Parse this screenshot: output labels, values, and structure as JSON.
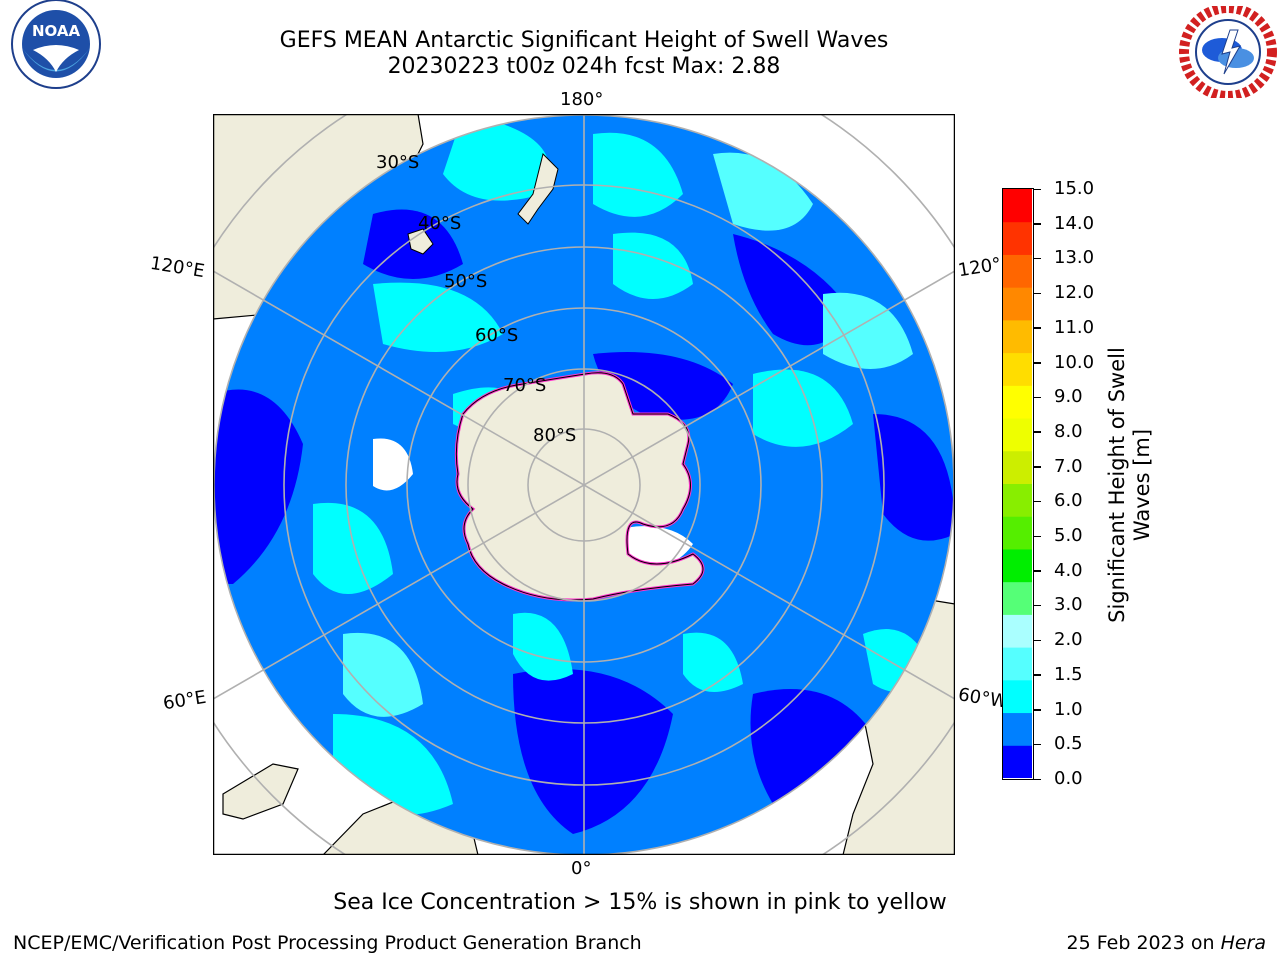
{
  "header": {
    "title_line1": "GEFS MEAN Antarctic Significant Height of Swell Waves",
    "title_line2": "20230223 t00z 024h fcst   Max: 2.88"
  },
  "logos": {
    "noaa": {
      "text": "NOAA",
      "ring_text": "NATIONAL OCEANIC AND ATMOSPHERIC ADMINISTRATION · U.S. DEPARTMENT OF COMMERCE"
    },
    "nws": {
      "ring_text": "NATIONAL WEATHER SERVICE"
    }
  },
  "map": {
    "longitude_labels": {
      "top": "180°",
      "bottom": "0°",
      "left_upper": "120°E",
      "left_lower": "60°E",
      "right_upper": "120°",
      "right_lower": "60°W"
    },
    "latitude_labels": [
      "30°S",
      "40°S",
      "50°S",
      "60°S",
      "70°S",
      "80°S"
    ],
    "colors": {
      "land": "#efeddc",
      "ocean_low": "#0000ff",
      "ocean_mid": "#0080ff",
      "ocean_high": "#00ffff",
      "ocean_highest": "#55ffff",
      "ice_edge": "#ff33cc",
      "grid": "#b0b0b0"
    }
  },
  "colorbar": {
    "title_line1": "Significant Height of Swell",
    "title_line2": "Waves [m]",
    "ticks": [
      "15.0",
      "14.0",
      "13.0",
      "12.0",
      "11.0",
      "10.0",
      "9.0",
      "8.0",
      "7.0",
      "6.0",
      "5.0",
      "4.0",
      "3.0",
      "2.0",
      "1.5",
      "1.0",
      "0.5",
      "0.0"
    ],
    "bins": [
      "#0000ff",
      "#0080ff",
      "#00ffff",
      "#55ffff",
      "#aaffff",
      "#55ff77",
      "#00ee00",
      "#55ee00",
      "#88ee00",
      "#ccee00",
      "#eeff00",
      "#ffff00",
      "#ffdd00",
      "#ffbb00",
      "#ff8800",
      "#ff6600",
      "#ff3300",
      "#ff0000"
    ]
  },
  "note": "Sea Ice Concentration > 15% is shown in pink to yellow",
  "footer": {
    "left": "NCEP/EMC/Verification Post Processing Product Generation Branch",
    "right_date": "25 Feb 2023 on",
    "right_host": "Hera"
  }
}
